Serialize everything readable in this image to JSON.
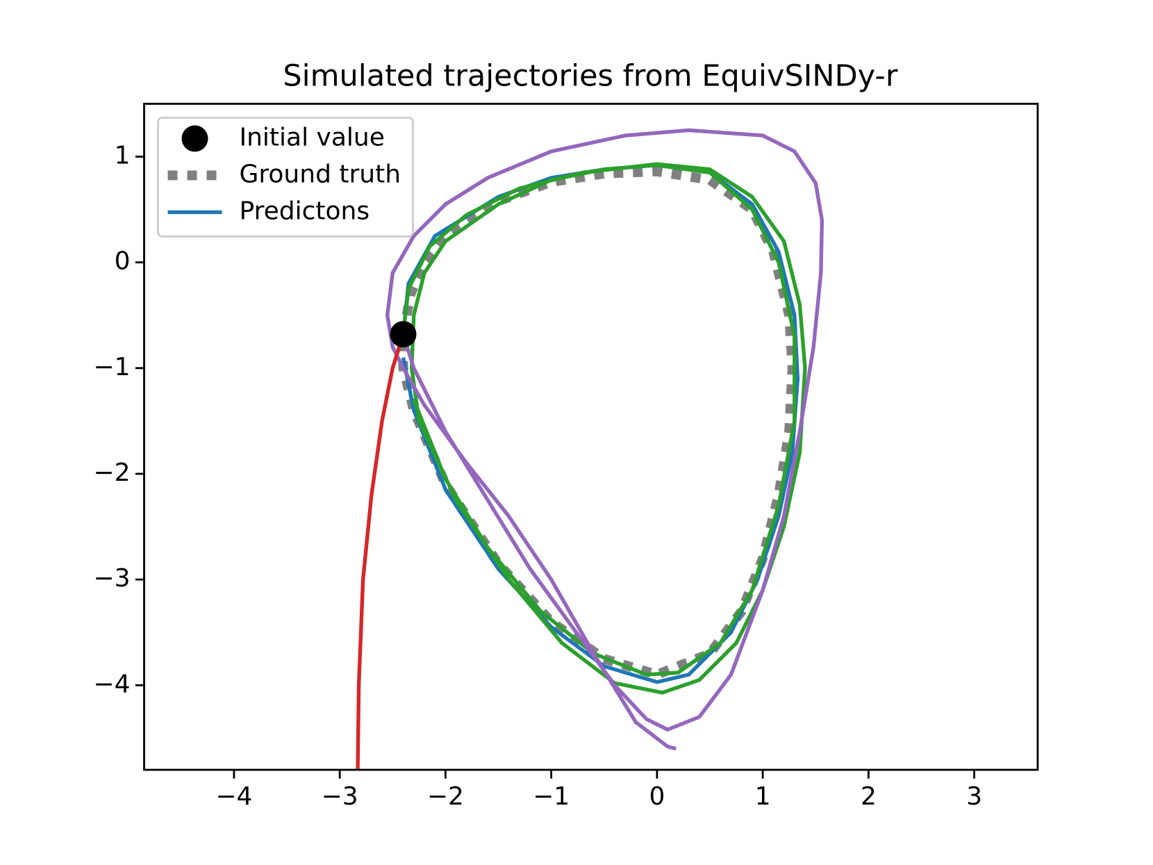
{
  "chart_data": {
    "type": "line",
    "title": "Simulated trajectories from EquivSINDy-r",
    "xlim": [
      -4.85,
      3.6
    ],
    "ylim": [
      -4.8,
      1.5
    ],
    "xticks": [
      {
        "value": -4,
        "label": "−4"
      },
      {
        "value": -3,
        "label": "−3"
      },
      {
        "value": -2,
        "label": "−2"
      },
      {
        "value": -1,
        "label": "−1"
      },
      0,
      1,
      2,
      3
    ],
    "yticks": [
      {
        "value": -4,
        "label": "−4"
      },
      {
        "value": -3,
        "label": "−3"
      },
      {
        "value": -2,
        "label": "−2"
      },
      {
        "value": -1,
        "label": "−1"
      },
      0,
      1
    ],
    "legend": "upper left",
    "initial_value": {
      "name": "Initial value",
      "color": "#000000",
      "x": -2.4,
      "y": -0.68
    },
    "series": [
      {
        "name": "Ground truth",
        "color": "#808080",
        "style": "dotted",
        "x": [
          -2.4,
          -2.33,
          -2.2,
          -2.0,
          -1.5,
          -1.0,
          -0.5,
          0,
          0.5,
          0.9,
          1.1,
          1.25,
          1.28,
          1.25,
          1.15,
          1.0,
          0.8,
          0.5,
          0,
          -0.5,
          -1.0,
          -1.5,
          -2.0,
          -2.3,
          -2.4,
          -2.4
        ],
        "y": [
          -0.68,
          -0.3,
          0.0,
          0.25,
          0.58,
          0.76,
          0.84,
          0.86,
          0.78,
          0.5,
          0.1,
          -0.5,
          -1.0,
          -1.6,
          -2.2,
          -2.8,
          -3.3,
          -3.7,
          -3.9,
          -3.75,
          -3.4,
          -2.85,
          -2.1,
          -1.4,
          -1.0,
          -0.68
        ]
      },
      {
        "name": "Predictons",
        "color": "#1f77b4",
        "style": "solid",
        "x": [
          -2.4,
          -2.35,
          -2.1,
          -1.5,
          -1.0,
          -0.5,
          0,
          0.5,
          0.9,
          1.15,
          1.3,
          1.33,
          1.28,
          1.15,
          0.95,
          0.7,
          0.3,
          0,
          -0.5,
          -1.0,
          -1.5,
          -2.0,
          -2.3,
          -2.4
        ],
        "y": [
          -0.68,
          -0.2,
          0.25,
          0.62,
          0.8,
          0.88,
          0.92,
          0.85,
          0.55,
          0.1,
          -0.5,
          -1.1,
          -1.8,
          -2.4,
          -3.0,
          -3.5,
          -3.9,
          -3.97,
          -3.82,
          -3.45,
          -2.9,
          -2.15,
          -1.4,
          -0.9
        ]
      },
      {
        "color": "#2ca02c",
        "style": "solid",
        "x": [
          -2.4,
          -2.35,
          -2.15,
          -1.8,
          -1.3,
          -0.7,
          0,
          0.5,
          0.9,
          1.2,
          1.35,
          1.4,
          1.35,
          1.2,
          1.0,
          0.75,
          0.4,
          0.05,
          -0.4,
          -0.9,
          -1.4,
          -1.9,
          -2.25,
          -2.32,
          -2.3,
          -2.2,
          -2.0,
          -1.5,
          -1.0,
          -0.5,
          0,
          0.5,
          0.9,
          1.15,
          1.3,
          1.3,
          1.15,
          0.9,
          0.6,
          0.2,
          -0.1,
          -0.6,
          -1.1,
          -1.6,
          -2.0,
          -2.3
        ],
        "y": [
          -0.68,
          -0.25,
          0.15,
          0.45,
          0.7,
          0.85,
          0.93,
          0.88,
          0.62,
          0.2,
          -0.4,
          -1.0,
          -1.8,
          -2.5,
          -3.1,
          -3.6,
          -3.95,
          -4.07,
          -3.98,
          -3.6,
          -3.0,
          -2.25,
          -1.5,
          -1.0,
          -0.5,
          -0.1,
          0.2,
          0.55,
          0.78,
          0.88,
          0.92,
          0.85,
          0.5,
          0.0,
          -0.7,
          -1.5,
          -2.3,
          -3.1,
          -3.6,
          -3.88,
          -3.9,
          -3.7,
          -3.3,
          -2.7,
          -2.05,
          -1.3
        ]
      },
      {
        "color": "#9467bd",
        "style": "solid",
        "x": [
          -2.4,
          -2.3,
          -2.0,
          -1.6,
          -1.2,
          -0.8,
          -0.4,
          -0.1,
          0.1,
          0.4,
          0.7,
          1.0,
          1.2,
          1.35,
          1.48,
          1.55,
          1.56,
          1.5,
          1.3,
          1.0,
          0.3,
          -0.3,
          -1.0,
          -1.6,
          -2.0,
          -2.3,
          -2.5,
          -2.55,
          -2.5,
          -2.4,
          -2.2,
          -1.8,
          -1.41,
          -1.0,
          -0.6,
          -0.2,
          0.1,
          0.18
        ],
        "y": [
          -0.68,
          -1.0,
          -1.6,
          -2.25,
          -2.9,
          -3.45,
          -4.0,
          -4.32,
          -4.42,
          -4.3,
          -3.9,
          -3.1,
          -2.4,
          -1.6,
          -0.8,
          -0.1,
          0.4,
          0.75,
          1.05,
          1.2,
          1.25,
          1.2,
          1.05,
          0.8,
          0.55,
          0.25,
          -0.1,
          -0.5,
          -0.8,
          -1.0,
          -1.35,
          -1.9,
          -2.39,
          -3.0,
          -3.7,
          -4.35,
          -4.58,
          -4.6
        ]
      },
      {
        "color": "#d62728",
        "style": "solid",
        "x": [
          -2.4,
          -2.5,
          -2.6,
          -2.7,
          -2.78,
          -2.82,
          -2.83
        ],
        "y": [
          -0.68,
          -1.0,
          -1.5,
          -2.2,
          -3.0,
          -4.0,
          -4.8
        ]
      }
    ]
  }
}
